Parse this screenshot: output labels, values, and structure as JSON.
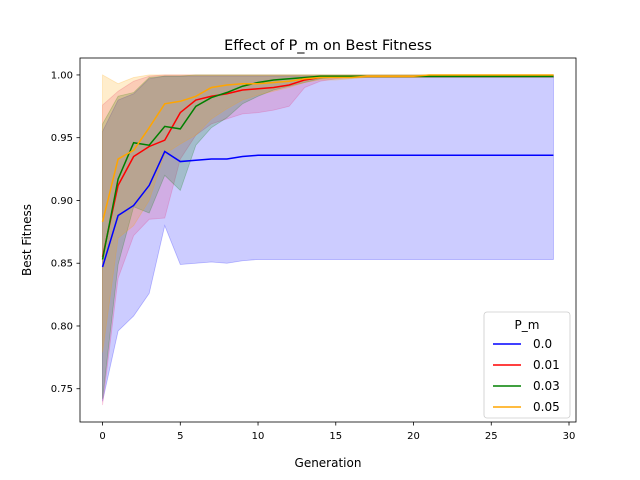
{
  "chart_data": {
    "type": "line",
    "title": "Effect of P_m on Best Fitness",
    "xlabel": "Generation",
    "ylabel": "Best Fitness",
    "xlim": [
      -1.45,
      30.45
    ],
    "ylim": [
      0.7235,
      1.0135
    ],
    "x_ticks": [
      0,
      5,
      10,
      15,
      20,
      25,
      30
    ],
    "y_ticks": [
      0.75,
      0.8,
      0.85,
      0.9,
      0.95,
      1.0
    ],
    "x_tick_labels": [
      "0",
      "5",
      "10",
      "15",
      "20",
      "25",
      "30"
    ],
    "y_tick_labels": [
      "0.75",
      "0.80",
      "0.85",
      "0.90",
      "0.95",
      "1.00"
    ],
    "grid": false,
    "legend": {
      "title": "P_m",
      "position": "lower-right"
    },
    "x": [
      0,
      1,
      2,
      3,
      4,
      5,
      6,
      7,
      8,
      9,
      10,
      11,
      12,
      13,
      14,
      15,
      16,
      17,
      18,
      19,
      20,
      21,
      22,
      23,
      24,
      25,
      26,
      27,
      28,
      29
    ],
    "series": [
      {
        "name": "0.0",
        "color": "#0000ff",
        "band_color": "#0000ff",
        "values": [
          0.847,
          0.888,
          0.896,
          0.912,
          0.939,
          0.931,
          0.932,
          0.933,
          0.933,
          0.935,
          0.936,
          0.936,
          0.936,
          0.936,
          0.936,
          0.936,
          0.936,
          0.936,
          0.936,
          0.936,
          0.936,
          0.936,
          0.936,
          0.936,
          0.936,
          0.936,
          0.936,
          0.936,
          0.936,
          0.936
        ],
        "lower": [
          0.74,
          0.796,
          0.808,
          0.826,
          0.88,
          0.849,
          0.85,
          0.851,
          0.85,
          0.852,
          0.853,
          0.853,
          0.853,
          0.853,
          0.853,
          0.853,
          0.853,
          0.853,
          0.853,
          0.853,
          0.853,
          0.853,
          0.853,
          0.853,
          0.853,
          0.853,
          0.853,
          0.853,
          0.853,
          0.853
        ],
        "upper": [
          0.955,
          0.98,
          0.985,
          0.997,
          0.999,
          0.999,
          0.999,
          0.999,
          0.999,
          0.999,
          0.999,
          0.999,
          0.999,
          0.999,
          0.999,
          0.999,
          0.999,
          0.999,
          0.999,
          0.999,
          0.999,
          0.999,
          0.999,
          0.999,
          0.999,
          0.999,
          0.999,
          0.999,
          0.999,
          0.999
        ]
      },
      {
        "name": "0.01",
        "color": "#ff0000",
        "band_color": "#e8307a",
        "values": [
          0.855,
          0.912,
          0.935,
          0.943,
          0.948,
          0.97,
          0.98,
          0.983,
          0.985,
          0.988,
          0.989,
          0.99,
          0.992,
          0.996,
          0.998,
          0.999,
          0.999,
          0.999,
          0.999,
          0.999,
          0.999,
          0.999,
          0.999,
          0.999,
          0.999,
          0.999,
          0.999,
          0.999,
          0.999,
          0.999
        ],
        "lower": [
          0.737,
          0.838,
          0.872,
          0.885,
          0.886,
          0.933,
          0.952,
          0.961,
          0.965,
          0.969,
          0.97,
          0.972,
          0.975,
          0.99,
          0.995,
          0.997,
          0.998,
          0.998,
          0.998,
          0.998,
          0.998,
          0.998,
          0.998,
          0.998,
          0.998,
          0.998,
          0.998,
          0.998,
          0.998,
          0.998
        ],
        "upper": [
          0.976,
          0.987,
          0.995,
          0.999,
          1.0,
          1.0,
          1.0,
          1.0,
          1.0,
          1.0,
          1.0,
          1.0,
          1.0,
          1.0,
          1.0,
          1.0,
          1.0,
          1.0,
          1.0,
          1.0,
          1.0,
          1.0,
          1.0,
          1.0,
          1.0,
          1.0,
          1.0,
          1.0,
          1.0,
          1.0
        ]
      },
      {
        "name": "0.03",
        "color": "#008000",
        "band_color": "#008000",
        "values": [
          0.853,
          0.917,
          0.946,
          0.944,
          0.959,
          0.957,
          0.975,
          0.982,
          0.986,
          0.991,
          0.994,
          0.996,
          0.997,
          0.998,
          0.999,
          0.999,
          0.999,
          0.999,
          0.999,
          0.999,
          0.999,
          0.999,
          0.999,
          0.999,
          0.999,
          0.999,
          0.999,
          0.999,
          0.999,
          0.999
        ],
        "lower": [
          0.742,
          0.849,
          0.895,
          0.89,
          0.92,
          0.908,
          0.944,
          0.958,
          0.966,
          0.977,
          0.983,
          0.988,
          0.991,
          0.994,
          0.997,
          0.998,
          0.998,
          0.998,
          0.998,
          0.998,
          0.998,
          0.998,
          0.998,
          0.998,
          0.998,
          0.998,
          0.998,
          0.998,
          0.998,
          0.998
        ],
        "upper": [
          0.961,
          0.983,
          0.986,
          0.998,
          0.999,
          0.999,
          1.0,
          1.0,
          1.0,
          1.0,
          1.0,
          1.0,
          1.0,
          1.0,
          1.0,
          1.0,
          1.0,
          1.0,
          1.0,
          1.0,
          1.0,
          1.0,
          1.0,
          1.0,
          1.0,
          1.0,
          1.0,
          1.0,
          1.0,
          1.0
        ]
      },
      {
        "name": "0.05",
        "color": "#ffa500",
        "band_color": "#ffa500",
        "values": [
          0.883,
          0.933,
          0.94,
          0.958,
          0.977,
          0.979,
          0.983,
          0.99,
          0.992,
          0.993,
          0.993,
          0.994,
          0.995,
          0.997,
          0.998,
          0.998,
          0.998,
          0.999,
          0.999,
          0.999,
          0.999,
          1.0,
          1.0,
          1.0,
          1.0,
          1.0,
          1.0,
          1.0,
          1.0,
          1.0
        ],
        "lower": [
          0.779,
          0.87,
          0.88,
          0.9,
          0.937,
          0.945,
          0.952,
          0.965,
          0.973,
          0.98,
          0.984,
          0.987,
          0.99,
          0.994,
          0.996,
          0.996,
          0.997,
          0.998,
          0.998,
          0.998,
          0.998,
          0.999,
          0.999,
          0.999,
          0.999,
          0.999,
          0.999,
          0.999,
          0.999,
          0.999
        ],
        "upper": [
          1.0,
          0.993,
          0.998,
          1.0,
          1.0,
          1.0,
          1.0,
          1.0,
          1.0,
          1.0,
          1.0,
          1.0,
          1.0,
          1.0,
          1.0,
          1.0,
          1.0,
          1.0,
          1.0,
          1.0,
          1.0,
          1.0,
          1.0,
          1.0,
          1.0,
          1.0,
          1.0,
          1.0,
          1.0,
          1.0
        ]
      }
    ]
  }
}
